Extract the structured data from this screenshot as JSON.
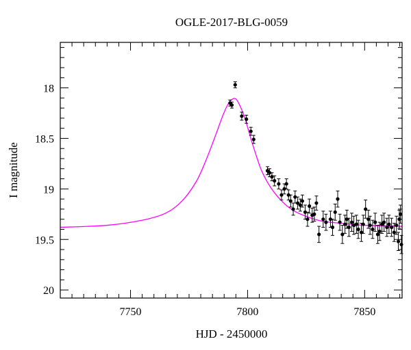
{
  "chart_data": {
    "type": "scatter",
    "title": "OGLE-2017-BLG-0059",
    "xlabel": "HJD - 2450000",
    "ylabel": "I magnitude",
    "xlim": [
      7720,
      7866
    ],
    "ylim": [
      20.08,
      17.55
    ],
    "y_inverted": true,
    "x_ticks": [
      7750,
      7800,
      7850
    ],
    "y_ticks": [
      18,
      18.5,
      19,
      19.5,
      20
    ],
    "x_minor_step": 5,
    "y_minor_step": 0.1,
    "grid": false,
    "colors": {
      "model": "#ff00ff",
      "points": "#000000"
    },
    "series": [
      {
        "type": "line",
        "color": "#ff00ff",
        "x": [
          7720,
          7740,
          7755,
          7765,
          7772,
          7778,
          7782,
          7786,
          7789,
          7791,
          7793,
          7795,
          7797,
          7799,
          7801,
          7803,
          7806,
          7810,
          7815,
          7820,
          7826,
          7832,
          7840,
          7850,
          7866
        ],
        "y": [
          19.38,
          19.36,
          19.31,
          19.24,
          19.12,
          18.93,
          18.73,
          18.49,
          18.3,
          18.19,
          18.12,
          18.11,
          18.19,
          18.31,
          18.47,
          18.62,
          18.82,
          18.99,
          19.13,
          19.22,
          19.28,
          19.32,
          19.34,
          19.36,
          19.37
        ]
      },
      {
        "type": "scatter",
        "color": "#000000",
        "x": [
          7792.5,
          7793.3,
          7794.7,
          7797.5,
          7799.5,
          7801.4,
          7802.6,
          7808.5,
          7809.4,
          7810.4,
          7811.5,
          7813.3,
          7814.5,
          7815.7,
          7816.6,
          7817.5,
          7818.4,
          7819.5,
          7820.3,
          7821.4,
          7822.5,
          7823.4,
          7824.6,
          7825.6,
          7826.4,
          7827.6,
          7828.5,
          7829.4,
          7830.5,
          7832.3,
          7833.5,
          7835.4,
          7836.3,
          7837.4,
          7838.5,
          7839.4,
          7840.5,
          7841.6,
          7842.4,
          7843.3,
          7844.5,
          7845.4,
          7846.5,
          7847.3,
          7848.6,
          7849.4,
          7850.4,
          7851.6,
          7852.3,
          7853.4,
          7854.5,
          7855.6,
          7856.4,
          7857.4,
          7858.3,
          7859.5,
          7860.4,
          7861.5,
          7862.6,
          7863.6,
          7864.4,
          7864.8,
          7865.3,
          7865.7
        ],
        "y": [
          18.15,
          18.17,
          17.97,
          18.28,
          18.31,
          18.43,
          18.51,
          18.82,
          18.84,
          18.88,
          18.92,
          18.95,
          19.06,
          19.0,
          18.95,
          19.06,
          19.12,
          19.2,
          19.08,
          19.14,
          19.16,
          19.12,
          19.23,
          19.3,
          19.17,
          19.26,
          19.25,
          19.14,
          19.45,
          19.3,
          19.33,
          19.3,
          19.38,
          19.23,
          19.1,
          19.33,
          19.45,
          19.35,
          19.3,
          19.38,
          19.33,
          19.36,
          19.35,
          19.4,
          19.43,
          19.35,
          19.2,
          19.3,
          19.36,
          19.4,
          19.33,
          19.45,
          19.42,
          19.35,
          19.33,
          19.38,
          19.35,
          19.38,
          19.43,
          19.36,
          19.52,
          19.3,
          19.25,
          19.55
        ],
        "yerr": [
          0.03,
          0.03,
          0.03,
          0.04,
          0.04,
          0.04,
          0.04,
          0.04,
          0.04,
          0.04,
          0.05,
          0.05,
          0.05,
          0.05,
          0.05,
          0.05,
          0.06,
          0.06,
          0.06,
          0.06,
          0.06,
          0.06,
          0.07,
          0.07,
          0.07,
          0.07,
          0.07,
          0.07,
          0.08,
          0.08,
          0.08,
          0.08,
          0.08,
          0.08,
          0.08,
          0.08,
          0.09,
          0.09,
          0.09,
          0.09,
          0.09,
          0.09,
          0.09,
          0.09,
          0.09,
          0.09,
          0.09,
          0.09,
          0.09,
          0.09,
          0.09,
          0.09,
          0.09,
          0.09,
          0.09,
          0.09,
          0.09,
          0.09,
          0.09,
          0.09,
          0.09,
          0.09,
          0.09,
          0.09
        ]
      }
    ]
  }
}
